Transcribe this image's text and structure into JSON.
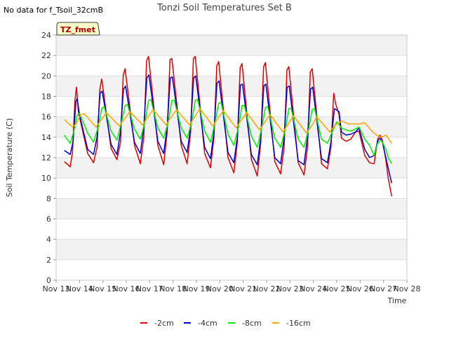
{
  "nodata_text": "No data for f_Tsoil_32cmB",
  "badge_text": "TZ_fmet",
  "chart_data": {
    "type": "line",
    "title": "Tonzi Soil Temperatures Set B",
    "xlabel": "Time",
    "ylabel": "Soil Temperature (C)",
    "xlim": [
      13,
      28
    ],
    "ylim": [
      0,
      24
    ],
    "x_ticks": [
      13,
      14,
      15,
      16,
      17,
      18,
      19,
      20,
      21,
      22,
      23,
      24,
      25,
      26,
      27,
      28
    ],
    "x_tick_labels": [
      "Nov 13",
      "Nov 14",
      "Nov 15",
      "Nov 16",
      "Nov 17",
      "Nov 18",
      "Nov 19",
      "Nov 20",
      "Nov 21",
      "Nov 22",
      "Nov 23",
      "Nov 24",
      "Nov 25",
      "Nov 26",
      "Nov 27",
      "Nov 28"
    ],
    "y_ticks": [
      0,
      2,
      4,
      6,
      8,
      10,
      12,
      14,
      16,
      18,
      20,
      22,
      24
    ],
    "y_tick_labels": [
      "0",
      "2",
      "4",
      "6",
      "8",
      "10",
      "12",
      "14",
      "16",
      "18",
      "20",
      "22",
      "24"
    ],
    "grid": true,
    "legend_position": "bottom-center",
    "series": [
      {
        "name": "-2cm",
        "color": "#dd0000",
        "x": [
          13.35,
          13.6,
          13.7,
          13.8,
          13.87,
          13.95,
          14.35,
          14.6,
          14.75,
          14.87,
          14.95,
          15.35,
          15.6,
          15.75,
          15.87,
          15.95,
          16.35,
          16.6,
          16.75,
          16.87,
          16.95,
          17.35,
          17.6,
          17.75,
          17.87,
          17.95,
          18.35,
          18.6,
          18.75,
          18.87,
          18.95,
          19.35,
          19.6,
          19.75,
          19.87,
          19.95,
          20.35,
          20.6,
          20.75,
          20.87,
          20.95,
          21.35,
          21.6,
          21.75,
          21.87,
          21.95,
          22.35,
          22.6,
          22.75,
          22.87,
          22.95,
          23.35,
          23.6,
          23.75,
          23.87,
          23.95,
          24.35,
          24.6,
          24.75,
          24.87,
          24.95,
          25.1,
          25.2,
          25.4,
          25.6,
          25.8,
          25.95,
          26.2,
          26.4,
          26.6,
          26.75,
          26.85,
          26.95,
          27.1,
          27.2,
          27.35
        ],
        "y": [
          11.6,
          11.1,
          12.5,
          17.5,
          18.9,
          16.5,
          12.4,
          11.5,
          13,
          18.7,
          19.7,
          12.9,
          11.8,
          13.5,
          20.1,
          20.7,
          13.2,
          11.4,
          14,
          21.5,
          21.9,
          13.2,
          11.3,
          14.5,
          21.6,
          21.7,
          13.2,
          11.4,
          14.5,
          21.7,
          21.9,
          12.4,
          11.0,
          14,
          21.0,
          21.4,
          12.0,
          10.5,
          13.5,
          20.8,
          21.2,
          11.8,
          10.2,
          13.5,
          20.9,
          21.3,
          11.6,
          10.4,
          13,
          20.6,
          20.9,
          11.5,
          10.3,
          13,
          20.4,
          20.7,
          11.4,
          10.9,
          13,
          18.3,
          17.3,
          16.2,
          13.9,
          13.6,
          13.8,
          14.5,
          14.6,
          12.2,
          11.5,
          11.4,
          13.8,
          14.2,
          13.7,
          11.8,
          10,
          8.2
        ]
      },
      {
        "name": "-4cm",
        "color": "#0000cc",
        "x": [
          13.35,
          13.6,
          13.72,
          13.85,
          13.9,
          14.0,
          14.35,
          14.6,
          14.75,
          14.88,
          14.97,
          15.35,
          15.6,
          15.75,
          15.88,
          15.97,
          16.35,
          16.6,
          16.75,
          16.88,
          16.97,
          17.35,
          17.6,
          17.75,
          17.88,
          17.97,
          18.35,
          18.6,
          18.75,
          18.88,
          18.97,
          19.35,
          19.6,
          19.75,
          19.88,
          19.97,
          20.35,
          20.6,
          20.75,
          20.88,
          20.97,
          21.35,
          21.6,
          21.75,
          21.88,
          21.97,
          22.35,
          22.6,
          22.75,
          22.88,
          22.97,
          23.35,
          23.6,
          23.75,
          23.88,
          23.97,
          24.35,
          24.6,
          24.75,
          24.9,
          25.1,
          25.2,
          25.4,
          25.6,
          25.8,
          25.95,
          26.2,
          26.4,
          26.6,
          26.75,
          26.85,
          26.95,
          27.1,
          27.2,
          27.35
        ],
        "y": [
          12.7,
          12.3,
          13.5,
          17.5,
          17.8,
          16.2,
          12.8,
          12.3,
          14,
          18.3,
          18.5,
          13.3,
          12.3,
          14.5,
          18.7,
          19.0,
          13.5,
          12.4,
          15,
          19.8,
          20.1,
          13.6,
          12.4,
          15,
          19.8,
          19.9,
          13.6,
          12.5,
          15,
          19.8,
          20.0,
          13.0,
          11.9,
          14.5,
          19.3,
          19.5,
          12.5,
          11.5,
          14,
          19.1,
          19.2,
          12.3,
          11.3,
          14,
          19.0,
          19.2,
          12.0,
          11.4,
          14,
          18.9,
          19.0,
          11.7,
          11.3,
          14,
          18.7,
          18.9,
          11.9,
          11.5,
          13.5,
          16.8,
          16.5,
          14.5,
          14.2,
          14.3,
          14.5,
          14.9,
          12.8,
          12.0,
          12.2,
          13.6,
          13.9,
          13.5,
          12.0,
          11.0,
          9.5
        ]
      },
      {
        "name": "-8cm",
        "color": "#00ee00",
        "x": [
          13.35,
          13.6,
          13.75,
          13.9,
          14.0,
          14.1,
          14.35,
          14.6,
          14.8,
          14.95,
          15.05,
          15.35,
          15.6,
          15.8,
          15.95,
          16.05,
          16.35,
          16.6,
          16.8,
          16.95,
          17.05,
          17.35,
          17.6,
          17.8,
          17.95,
          18.05,
          18.35,
          18.6,
          18.8,
          18.95,
          19.05,
          19.35,
          19.6,
          19.8,
          19.95,
          20.05,
          20.35,
          20.6,
          20.8,
          20.95,
          21.05,
          21.35,
          21.6,
          21.8,
          21.95,
          22.05,
          22.35,
          22.6,
          22.8,
          22.95,
          23.05,
          23.35,
          23.6,
          23.8,
          23.95,
          24.05,
          24.35,
          24.6,
          24.8,
          25.0,
          25.2,
          25.4,
          25.6,
          25.8,
          25.95,
          26.2,
          26.4,
          26.6,
          26.75,
          26.9,
          27.1,
          27.2,
          27.35
        ],
        "y": [
          14.2,
          13.4,
          14.5,
          16.2,
          16.3,
          15.8,
          14.4,
          13.5,
          15,
          16.8,
          17.0,
          14.6,
          13.7,
          15.5,
          17.1,
          17.2,
          14.8,
          13.8,
          15.5,
          17.6,
          17.7,
          14.9,
          13.9,
          15.5,
          17.6,
          17.6,
          14.9,
          13.9,
          15.5,
          17.6,
          17.7,
          14.6,
          13.5,
          15.5,
          17.3,
          17.4,
          14.3,
          13.2,
          15,
          17.1,
          17.1,
          14.1,
          13.0,
          15,
          16.9,
          17.0,
          13.9,
          13.0,
          14.8,
          16.8,
          16.8,
          13.8,
          13.0,
          14.8,
          16.7,
          16.8,
          13.8,
          13.4,
          14.5,
          15.5,
          14.9,
          14.7,
          14.6,
          14.8,
          15.0,
          13.8,
          13.2,
          12.2,
          13.4,
          13.7,
          12.8,
          12.0,
          11.4
        ]
      },
      {
        "name": "-16cm",
        "color": "#ffa500",
        "x": [
          13.35,
          13.7,
          13.85,
          14.05,
          14.2,
          14.7,
          14.9,
          15.15,
          15.7,
          15.9,
          16.15,
          16.7,
          16.9,
          17.15,
          17.7,
          17.9,
          18.15,
          18.7,
          18.9,
          19.15,
          19.7,
          19.9,
          20.15,
          20.7,
          20.9,
          21.15,
          21.7,
          21.9,
          22.15,
          22.7,
          22.9,
          23.15,
          23.7,
          23.9,
          24.15,
          24.7,
          24.9,
          25.2,
          25.5,
          26.0,
          26.2,
          26.5,
          26.7,
          26.9,
          27.1,
          27.35
        ],
        "y": [
          15.7,
          15.0,
          15.3,
          16.2,
          16.3,
          15.0,
          15.6,
          16.4,
          15.1,
          15.7,
          16.5,
          15.2,
          15.9,
          16.7,
          15.2,
          15.9,
          16.7,
          15.2,
          15.9,
          16.8,
          15.1,
          15.8,
          16.6,
          14.9,
          15.6,
          16.4,
          14.7,
          15.4,
          16.2,
          14.5,
          15.2,
          16.1,
          14.4,
          15.0,
          16.0,
          14.5,
          15.1,
          15.6,
          15.3,
          15.3,
          15.4,
          14.6,
          14.2,
          14.0,
          14.2,
          13.4
        ]
      }
    ]
  }
}
